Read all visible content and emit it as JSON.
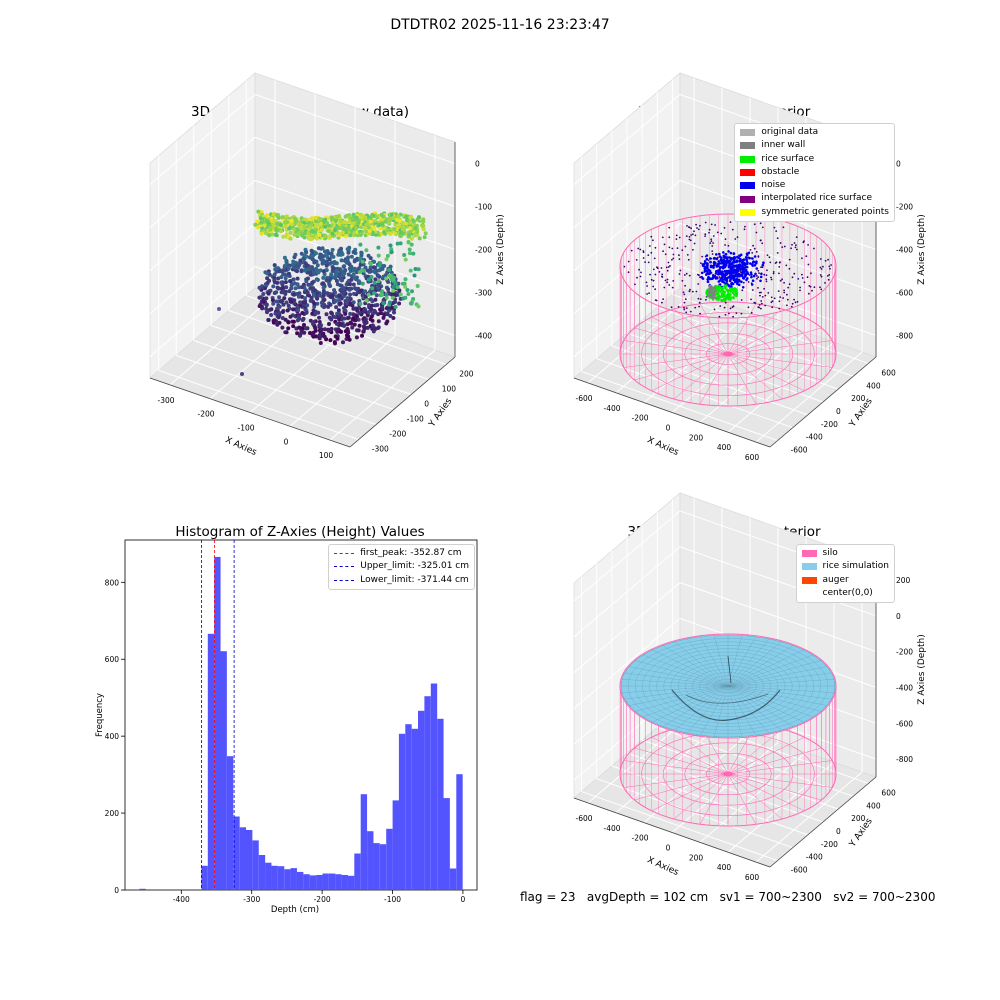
{
  "suptitle": "DTDTR02 2025-11-16 23:23:47",
  "colors": {
    "silo": "#ff69b4",
    "rice_sim": "#87ceeb",
    "hist_bar": "#4b4bff",
    "first_peak": "#ff0000",
    "limits": "#0000cc"
  },
  "chart_data": [
    {
      "type": "scatter",
      "title": "3D Plot of Silo Interior(row data)",
      "xlabel": "X Axies",
      "ylabel": "Y Axies",
      "zlabel": "Z Axies (Depth)",
      "xticks": [
        "-300",
        "-200",
        "-100",
        "0",
        "100"
      ],
      "yticks": [
        "-300",
        "-200",
        "-100",
        "0",
        "100",
        "200"
      ],
      "zticks": [
        "0",
        "-100",
        "-200",
        "-300",
        "-400"
      ],
      "colormap": "viridis"
    },
    {
      "type": "scatter",
      "title": "3D classify of Silo Interior",
      "xlabel": "X Axies",
      "ylabel": "Y Axies",
      "zlabel": "Z Axies (Depth)",
      "xticks": [
        "-600",
        "-400",
        "-200",
        "0",
        "200",
        "400",
        "600"
      ],
      "yticks": [
        "-600",
        "-400",
        "-200",
        "0",
        "200",
        "400",
        "600"
      ],
      "zticks": [
        "0",
        "-200",
        "-400",
        "-600",
        "-800"
      ],
      "legend": [
        {
          "label": "original data",
          "color": "#b0b0b0"
        },
        {
          "label": "inner wall",
          "color": "#808080"
        },
        {
          "label": "rice surface",
          "color": "#00ee00"
        },
        {
          "label": "obstacle",
          "color": "#ff0000"
        },
        {
          "label": "noise",
          "color": "#0000ee"
        },
        {
          "label": "interpolated rice surface",
          "color": "#800080"
        },
        {
          "label": "symmetric generated points",
          "color": "#ffff00"
        }
      ],
      "legend_loc": "upper right"
    },
    {
      "type": "bar",
      "title": "Histogram of Z-Axies (Height) Values",
      "xlabel": "Depth (cm)",
      "ylabel": "Frequency",
      "xlim": [
        -480,
        20
      ],
      "ylim": [
        0,
        910
      ],
      "xticks": [
        -400,
        -300,
        -200,
        -100,
        0
      ],
      "yticks": [
        0,
        200,
        400,
        600,
        800
      ],
      "bin_start": -371.44,
      "bin_width": 9.05,
      "values": [
        63,
        666,
        866,
        621,
        348,
        191,
        163,
        156,
        129,
        91,
        71,
        63,
        62,
        54,
        57,
        47,
        41,
        38,
        39,
        43,
        43,
        41,
        39,
        37,
        95,
        249,
        153,
        122,
        119,
        159,
        233,
        406,
        431,
        419,
        466,
        504,
        537,
        445,
        239,
        56,
        301
      ],
      "outliers": [
        {
          "x": -455,
          "value": 3
        }
      ],
      "vlines": [
        {
          "label": "first_peak: -352.87 cm",
          "x": -352.87,
          "color": "#ff0000"
        },
        {
          "label": "Upper_limit: -325.01 cm",
          "x": -325.01,
          "color": "#0000cc"
        },
        {
          "label": "Lower_limit: -371.44 cm",
          "x": -371.44,
          "color": "#0000cc"
        }
      ],
      "legend_loc": "upper right"
    },
    {
      "type": "scatter",
      "title": "3D simulation of Silo Interior",
      "xlabel": "X Axies",
      "ylabel": "Y Axies",
      "zlabel": "Z Axies (Depth)",
      "xticks": [
        "-600",
        "-400",
        "-200",
        "0",
        "200",
        "400",
        "600"
      ],
      "yticks": [
        "-600",
        "-400",
        "-200",
        "0",
        "200",
        "400",
        "600"
      ],
      "zticks": [
        "200",
        "0",
        "-200",
        "-400",
        "-600",
        "-800"
      ],
      "legend": [
        {
          "label": "silo",
          "color": "#ff69b4"
        },
        {
          "label": "rice simulation",
          "color": "#87ceeb"
        },
        {
          "label": "auger",
          "color": "#ff4500"
        },
        {
          "label": "center(0,0)",
          "color": "#ffffff"
        }
      ],
      "legend_loc": "upper right"
    }
  ],
  "footer": "flag = 23   avgDepth = 102 cm   sv1 = 700~2300   sv2 = 700~2300"
}
